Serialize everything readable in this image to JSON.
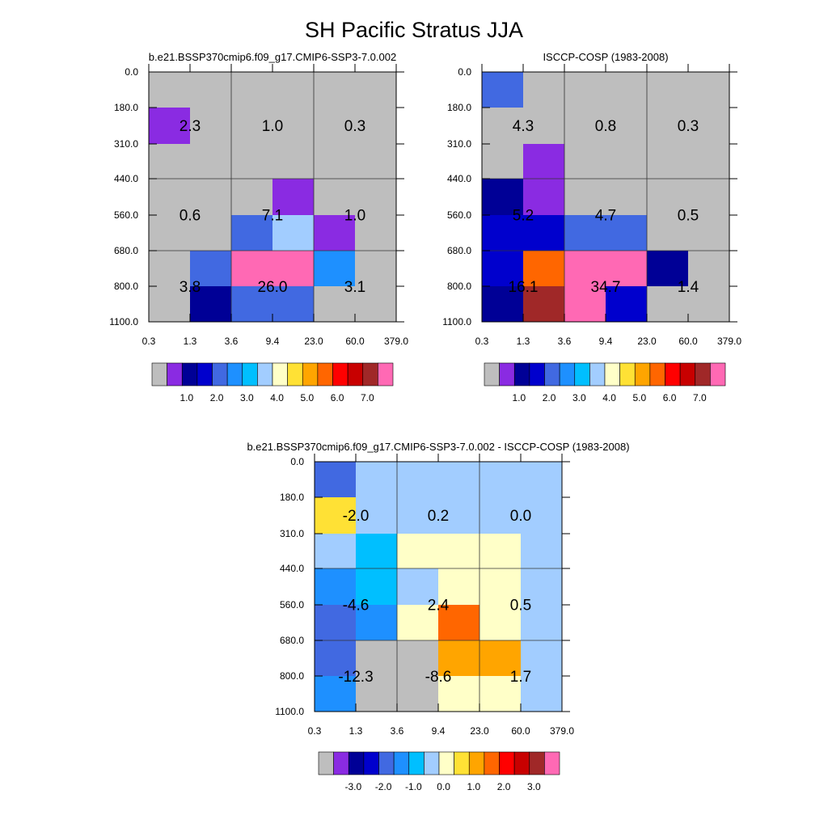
{
  "title": "SH Pacific Stratus JJA",
  "chart_data": [
    {
      "type": "heatmap",
      "title": "b.e21.BSSP370cmip6.f09_g17.CMIP6-SSP3-7.0.002",
      "x_ticks": [
        "0.3",
        "1.3",
        "3.6",
        "9.4",
        "23.0",
        "60.0",
        "379.0"
      ],
      "y_ticks": [
        "0.0",
        "180.0",
        "310.0",
        "440.0",
        "560.0",
        "680.0",
        "800.0",
        "1100.0"
      ],
      "cell_colors": [
        [
          "#bebebe",
          "#bebebe",
          "#bebebe",
          "#bebebe",
          "#bebebe",
          "#bebebe"
        ],
        [
          "#8a2be2",
          "#bebebe",
          "#bebebe",
          "#bebebe",
          "#bebebe",
          "#bebebe"
        ],
        [
          "#bebebe",
          "#bebebe",
          "#bebebe",
          "#bebebe",
          "#bebebe",
          "#bebebe"
        ],
        [
          "#bebebe",
          "#bebebe",
          "#bebebe",
          "#8a2be2",
          "#bebebe",
          "#bebebe"
        ],
        [
          "#bebebe",
          "#bebebe",
          "#4169e1",
          "#a2cdff",
          "#8a2be2",
          "#bebebe"
        ],
        [
          "#bebebe",
          "#4169e1",
          "#ff69b4",
          "#ff69b4",
          "#1e90ff",
          "#bebebe"
        ],
        [
          "#bebebe",
          "#000096",
          "#4169e1",
          "#4169e1",
          "#bebebe",
          "#bebebe"
        ]
      ],
      "group_values": [
        [
          "2.3",
          "1.0",
          "0.3"
        ],
        [
          "0.6",
          "7.1",
          "1.0"
        ],
        [
          "3.8",
          "26.0",
          "3.1"
        ]
      ],
      "colorbar": {
        "colors": [
          "#bebebe",
          "#8a2be2",
          "#000096",
          "#0000cd",
          "#4169e1",
          "#1e90ff",
          "#00bfff",
          "#a2cdff",
          "#ffffc8",
          "#ffe135",
          "#ffa500",
          "#ff6600",
          "#ff0000",
          "#c80000",
          "#a02828",
          "#ff69b4"
        ],
        "labels": [
          "1.0",
          "2.0",
          "3.0",
          "4.0",
          "5.0",
          "6.0",
          "7.0"
        ]
      }
    },
    {
      "type": "heatmap",
      "title": "ISCCP-COSP (1983-2008)",
      "x_ticks": [
        "0.3",
        "1.3",
        "3.6",
        "9.4",
        "23.0",
        "60.0",
        "379.0"
      ],
      "y_ticks": [
        "0.0",
        "180.0",
        "310.0",
        "440.0",
        "560.0",
        "680.0",
        "800.0",
        "1100.0"
      ],
      "cell_colors": [
        [
          "#4169e1",
          "#bebebe",
          "#bebebe",
          "#bebebe",
          "#bebebe",
          "#bebebe"
        ],
        [
          "#bebebe",
          "#bebebe",
          "#bebebe",
          "#bebebe",
          "#bebebe",
          "#bebebe"
        ],
        [
          "#bebebe",
          "#8a2be2",
          "#bebebe",
          "#bebebe",
          "#bebebe",
          "#bebebe"
        ],
        [
          "#000096",
          "#8a2be2",
          "#bebebe",
          "#bebebe",
          "#bebebe",
          "#bebebe"
        ],
        [
          "#0000cd",
          "#0000cd",
          "#4169e1",
          "#4169e1",
          "#bebebe",
          "#bebebe"
        ],
        [
          "#0000cd",
          "#ff6600",
          "#ff69b4",
          "#ff69b4",
          "#000096",
          "#bebebe"
        ],
        [
          "#000096",
          "#a02828",
          "#ff69b4",
          "#0000cd",
          "#bebebe",
          "#bebebe"
        ]
      ],
      "group_values": [
        [
          "4.3",
          "0.8",
          "0.3"
        ],
        [
          "5.2",
          "4.7",
          "0.5"
        ],
        [
          "16.1",
          "34.7",
          "1.4"
        ]
      ],
      "colorbar": {
        "colors": [
          "#bebebe",
          "#8a2be2",
          "#000096",
          "#0000cd",
          "#4169e1",
          "#1e90ff",
          "#00bfff",
          "#a2cdff",
          "#ffffc8",
          "#ffe135",
          "#ffa500",
          "#ff6600",
          "#ff0000",
          "#c80000",
          "#a02828",
          "#ff69b4"
        ],
        "labels": [
          "1.0",
          "2.0",
          "3.0",
          "4.0",
          "5.0",
          "6.0",
          "7.0"
        ]
      }
    },
    {
      "type": "heatmap",
      "title": "b.e21.BSSP370cmip6.f09_g17.CMIP6-SSP3-7.0.002 - ISCCP-COSP (1983-2008)",
      "x_ticks": [
        "0.3",
        "1.3",
        "3.6",
        "9.4",
        "23.0",
        "60.0",
        "379.0"
      ],
      "y_ticks": [
        "0.0",
        "180.0",
        "310.0",
        "440.0",
        "560.0",
        "680.0",
        "800.0",
        "1100.0"
      ],
      "cell_colors": [
        [
          "#4169e1",
          "#a2cdff",
          "#a2cdff",
          "#a2cdff",
          "#a2cdff",
          "#a2cdff"
        ],
        [
          "#ffe135",
          "#a2cdff",
          "#a2cdff",
          "#a2cdff",
          "#a2cdff",
          "#a2cdff"
        ],
        [
          "#a2cdff",
          "#00bfff",
          "#ffffc8",
          "#ffffc8",
          "#ffffc8",
          "#a2cdff"
        ],
        [
          "#1e90ff",
          "#00bfff",
          "#a2cdff",
          "#ffffc8",
          "#ffffc8",
          "#a2cdff"
        ],
        [
          "#4169e1",
          "#1e90ff",
          "#ffffc8",
          "#ff6600",
          "#ffffc8",
          "#a2cdff"
        ],
        [
          "#4169e1",
          "#bebebe",
          "#bebebe",
          "#ffa500",
          "#ffa500",
          "#a2cdff"
        ],
        [
          "#1e90ff",
          "#bebebe",
          "#bebebe",
          "#ffffc8",
          "#ffffc8",
          "#a2cdff"
        ]
      ],
      "group_values": [
        [
          "-2.0",
          "0.2",
          "0.0"
        ],
        [
          "-4.6",
          "2.4",
          "0.5"
        ],
        [
          "-12.3",
          "-8.6",
          "1.7"
        ]
      ],
      "colorbar": {
        "colors": [
          "#bebebe",
          "#8a2be2",
          "#000096",
          "#0000cd",
          "#4169e1",
          "#1e90ff",
          "#00bfff",
          "#a2cdff",
          "#ffffc8",
          "#ffe135",
          "#ffa500",
          "#ff6600",
          "#ff0000",
          "#c80000",
          "#a02828",
          "#ff69b4"
        ],
        "labels": [
          "-3.0",
          "-2.0",
          "-1.0",
          "0.0",
          "1.0",
          "2.0",
          "3.0"
        ]
      }
    }
  ]
}
